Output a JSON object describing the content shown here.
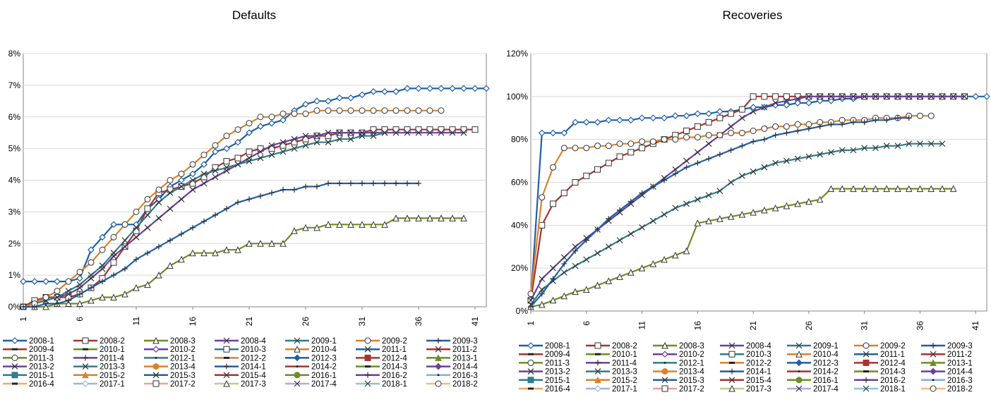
{
  "chart_data": [
    {
      "type": "line",
      "title": "Defaults",
      "xlabel": "",
      "ylabel": "",
      "x_ticks": [
        "1",
        "6",
        "11",
        "16",
        "21",
        "26",
        "31",
        "36",
        "41"
      ],
      "xlim": [
        1,
        42
      ],
      "ylim": [
        0,
        0.08
      ],
      "y_ticks": [
        "0%",
        "1%",
        "2%",
        "3%",
        "4%",
        "5%",
        "6%",
        "7%",
        "8%"
      ],
      "grid": true,
      "legend_position": "bottom",
      "series": [
        {
          "name": "2008-1",
          "color": "#1f5fa8",
          "marker": "diamond-open",
          "values": [
            0.008,
            0.008,
            0.008,
            0.008,
            0.008,
            0.009,
            0.018,
            0.022,
            0.026,
            0.026,
            0.026,
            0.031,
            0.034,
            0.038,
            0.04,
            0.042,
            0.045,
            0.049,
            0.05,
            0.052,
            0.055,
            0.057,
            0.058,
            0.059,
            0.062,
            0.064,
            0.065,
            0.065,
            0.066,
            0.066,
            0.067,
            0.068,
            0.068,
            0.068,
            0.069,
            0.069,
            0.069,
            0.069,
            0.069,
            0.069,
            0.069,
            0.069
          ]
        },
        {
          "name": "2008-2",
          "color": "#a83232",
          "marker": "square-open",
          "values": [
            0.0,
            0.002,
            0.003,
            0.003,
            0.003,
            0.004,
            0.006,
            0.009,
            0.014,
            0.019,
            0.024,
            0.031,
            0.036,
            0.037,
            0.038,
            0.039,
            0.041,
            0.044,
            0.046,
            0.047,
            0.049,
            0.05,
            0.05,
            0.051,
            0.052,
            0.053,
            0.054,
            0.054,
            0.055,
            0.055,
            0.055,
            0.056,
            0.056,
            0.056,
            0.056,
            0.056,
            0.056,
            0.056,
            0.056,
            0.056,
            0.056
          ]
        },
        {
          "name": "2008-3",
          "color": "#6b8e23",
          "marker": "triangle-open",
          "values": [
            0.0,
            0.0,
            0.0,
            0.001,
            0.001,
            0.001,
            0.002,
            0.003,
            0.003,
            0.004,
            0.006,
            0.007,
            0.01,
            0.013,
            0.015,
            0.017,
            0.017,
            0.017,
            0.018,
            0.018,
            0.02,
            0.02,
            0.02,
            0.02,
            0.024,
            0.025,
            0.025,
            0.026,
            0.026,
            0.026,
            0.026,
            0.026,
            0.026,
            0.028,
            0.028,
            0.028,
            0.028,
            0.028,
            0.028,
            0.028
          ]
        },
        {
          "name": "2008-4",
          "color": "#6c3fa0",
          "marker": "x",
          "values": [
            0.0,
            0.001,
            0.002,
            0.003,
            0.004,
            0.006,
            0.009,
            0.012,
            0.016,
            0.019,
            0.022,
            0.025,
            0.028,
            0.031,
            0.034,
            0.037,
            0.039,
            0.041,
            0.043,
            0.045,
            0.047,
            0.049,
            0.051,
            0.052,
            0.053,
            0.054,
            0.054,
            0.055,
            0.055,
            0.055,
            0.055,
            0.055,
            0.055,
            0.055,
            0.055,
            0.055,
            0.055,
            0.055,
            0.055,
            0.055
          ]
        },
        {
          "name": "2009-1",
          "color": "#2e7d8c",
          "marker": "x",
          "values": [
            0.0,
            0.001,
            0.002,
            0.003,
            0.005,
            0.007,
            0.01,
            0.013,
            0.017,
            0.021,
            0.025,
            0.029,
            0.033,
            0.036,
            0.038,
            0.04,
            0.042,
            0.043,
            0.044,
            0.045,
            0.046,
            0.047,
            0.048,
            0.049,
            0.05,
            0.051,
            0.052,
            0.052,
            0.053,
            0.053,
            0.054,
            0.054,
            0.055
          ]
        },
        {
          "name": "2009-2",
          "color": "#d9822b",
          "marker": "circle-open",
          "values": [
            0.0,
            0.001,
            0.003,
            0.005,
            0.008,
            0.011,
            0.014,
            0.018,
            0.022,
            0.026,
            0.03,
            0.034,
            0.037,
            0.04,
            0.042,
            0.045,
            0.048,
            0.051,
            0.054,
            0.056,
            0.058,
            0.06,
            0.06,
            0.061,
            0.061,
            0.061,
            0.062,
            0.062,
            0.062,
            0.062,
            0.062,
            0.062,
            0.062,
            0.062,
            0.062,
            0.062,
            0.062,
            0.062
          ]
        },
        {
          "name": "2009-3",
          "color": "#1f5fa8",
          "marker": "plus",
          "values": [
            0.0,
            0.0,
            0.001,
            0.001,
            0.002,
            0.004,
            0.006,
            0.008,
            0.01,
            0.012,
            0.015,
            0.017,
            0.019,
            0.021,
            0.023,
            0.025,
            0.027,
            0.029,
            0.031,
            0.033,
            0.034,
            0.035,
            0.036,
            0.037,
            0.037,
            0.038,
            0.038,
            0.039,
            0.039,
            0.039,
            0.039,
            0.039,
            0.039,
            0.039,
            0.039,
            0.039
          ]
        }
      ]
    },
    {
      "type": "line",
      "title": "Recoveries",
      "xlabel": "",
      "ylabel": "",
      "x_ticks": [
        "1",
        "6",
        "11",
        "16",
        "21",
        "26",
        "31",
        "36",
        "41"
      ],
      "xlim": [
        1,
        42
      ],
      "ylim": [
        0,
        1.2
      ],
      "y_ticks": [
        "0%",
        "20%",
        "40%",
        "60%",
        "80%",
        "100%",
        "120%"
      ],
      "grid": true,
      "legend_position": "bottom",
      "series": [
        {
          "name": "2008-1",
          "color": "#1f5fa8",
          "marker": "diamond-open",
          "values": [
            0.05,
            0.83,
            0.83,
            0.83,
            0.88,
            0.88,
            0.88,
            0.89,
            0.89,
            0.89,
            0.9,
            0.9,
            0.9,
            0.91,
            0.91,
            0.92,
            0.92,
            0.93,
            0.93,
            0.94,
            0.95,
            0.95,
            0.96,
            0.96,
            0.97,
            0.97,
            0.98,
            0.98,
            0.99,
            0.99,
            1.0,
            1.0,
            1.0,
            1.0,
            1.0,
            1.0,
            1.0,
            1.0,
            1.0,
            1.0,
            1.0,
            1.0
          ]
        },
        {
          "name": "2008-2",
          "color": "#a83232",
          "marker": "square-open",
          "values": [
            0.05,
            0.4,
            0.5,
            0.55,
            0.6,
            0.63,
            0.66,
            0.69,
            0.72,
            0.74,
            0.76,
            0.78,
            0.8,
            0.82,
            0.84,
            0.86,
            0.88,
            0.9,
            0.92,
            0.94,
            1.0,
            1.0,
            1.0,
            1.0,
            1.0,
            1.0,
            1.0,
            1.0,
            1.0,
            1.0,
            1.0,
            1.0,
            1.0,
            1.0,
            1.0,
            1.0,
            1.0,
            1.0,
            1.0,
            1.0
          ]
        },
        {
          "name": "2008-3",
          "color": "#6b8e23",
          "marker": "triangle-open",
          "values": [
            0.02,
            0.03,
            0.05,
            0.07,
            0.09,
            0.1,
            0.12,
            0.14,
            0.16,
            0.18,
            0.2,
            0.22,
            0.24,
            0.26,
            0.28,
            0.41,
            0.42,
            0.43,
            0.44,
            0.45,
            0.46,
            0.47,
            0.48,
            0.49,
            0.5,
            0.51,
            0.52,
            0.57,
            0.57,
            0.57,
            0.57,
            0.57,
            0.57,
            0.57,
            0.57,
            0.57,
            0.57,
            0.57,
            0.57
          ]
        },
        {
          "name": "2008-4",
          "color": "#6c3fa0",
          "marker": "x",
          "values": [
            0.05,
            0.15,
            0.2,
            0.25,
            0.3,
            0.34,
            0.38,
            0.42,
            0.46,
            0.5,
            0.54,
            0.58,
            0.62,
            0.66,
            0.7,
            0.74,
            0.78,
            0.82,
            0.86,
            0.9,
            0.93,
            0.95,
            0.97,
            0.98,
            0.99,
            1.0,
            1.0,
            1.0,
            1.0,
            1.0,
            1.0,
            1.0,
            1.0,
            1.0,
            1.0,
            1.0,
            1.0,
            1.0,
            1.0,
            1.0
          ]
        },
        {
          "name": "2009-1",
          "color": "#2e7d8c",
          "marker": "x",
          "values": [
            0.03,
            0.1,
            0.14,
            0.18,
            0.21,
            0.24,
            0.27,
            0.3,
            0.33,
            0.36,
            0.39,
            0.42,
            0.45,
            0.48,
            0.5,
            0.52,
            0.54,
            0.56,
            0.6,
            0.63,
            0.65,
            0.67,
            0.69,
            0.7,
            0.71,
            0.72,
            0.73,
            0.74,
            0.75,
            0.75,
            0.76,
            0.76,
            0.77,
            0.77,
            0.78,
            0.78,
            0.78,
            0.78
          ]
        },
        {
          "name": "2009-2",
          "color": "#d9822b",
          "marker": "circle-open",
          "values": [
            0.08,
            0.53,
            0.67,
            0.76,
            0.76,
            0.76,
            0.77,
            0.77,
            0.78,
            0.78,
            0.79,
            0.79,
            0.8,
            0.8,
            0.81,
            0.81,
            0.82,
            0.82,
            0.83,
            0.83,
            0.84,
            0.85,
            0.86,
            0.86,
            0.87,
            0.87,
            0.88,
            0.88,
            0.89,
            0.89,
            0.89,
            0.9,
            0.9,
            0.9,
            0.91,
            0.91,
            0.91
          ]
        },
        {
          "name": "2009-3",
          "color": "#1f5fa8",
          "marker": "plus",
          "values": [
            0.02,
            0.08,
            0.15,
            0.22,
            0.28,
            0.33,
            0.38,
            0.43,
            0.47,
            0.51,
            0.55,
            0.58,
            0.61,
            0.64,
            0.67,
            0.69,
            0.71,
            0.73,
            0.75,
            0.77,
            0.79,
            0.8,
            0.82,
            0.83,
            0.84,
            0.85,
            0.86,
            0.87,
            0.87,
            0.88,
            0.88,
            0.89,
            0.89,
            0.9,
            0.9
          ]
        }
      ]
    }
  ],
  "legend_items": [
    {
      "name": "2008-1",
      "color": "#1f5fa8",
      "marker": "diamond-open"
    },
    {
      "name": "2008-2",
      "color": "#a83232",
      "marker": "square-open"
    },
    {
      "name": "2008-3",
      "color": "#6b8e23",
      "marker": "triangle-open"
    },
    {
      "name": "2008-4",
      "color": "#6c3fa0",
      "marker": "x"
    },
    {
      "name": "2009-1",
      "color": "#2e7d8c",
      "marker": "x"
    },
    {
      "name": "2009-2",
      "color": "#d9822b",
      "marker": "circle-open"
    },
    {
      "name": "2009-3",
      "color": "#1f5fa8",
      "marker": "plus"
    },
    {
      "name": "2009-4",
      "color": "#a83232",
      "marker": "dash"
    },
    {
      "name": "2010-1",
      "color": "#6b8e23",
      "marker": "dash"
    },
    {
      "name": "2010-2",
      "color": "#6c3fa0",
      "marker": "diamond-open"
    },
    {
      "name": "2010-3",
      "color": "#2e7d8c",
      "marker": "square-open"
    },
    {
      "name": "2010-4",
      "color": "#d9822b",
      "marker": "triangle-open"
    },
    {
      "name": "2011-1",
      "color": "#1f5fa8",
      "marker": "x"
    },
    {
      "name": "2011-2",
      "color": "#a83232",
      "marker": "x"
    },
    {
      "name": "2011-3",
      "color": "#6b8e23",
      "marker": "circle-open"
    },
    {
      "name": "2011-4",
      "color": "#6c3fa0",
      "marker": "plus"
    },
    {
      "name": "2012-1",
      "color": "#2e7d8c",
      "marker": "dot"
    },
    {
      "name": "2012-2",
      "color": "#d9822b",
      "marker": "dash"
    },
    {
      "name": "2012-3",
      "color": "#1f5fa8",
      "marker": "diamond-filled"
    },
    {
      "name": "2012-4",
      "color": "#a83232",
      "marker": "square-filled"
    },
    {
      "name": "2013-1",
      "color": "#6b8e23",
      "marker": "triangle-filled"
    },
    {
      "name": "2013-2",
      "color": "#6c3fa0",
      "marker": "x"
    },
    {
      "name": "2013-3",
      "color": "#2e7d8c",
      "marker": "x"
    },
    {
      "name": "2013-4",
      "color": "#d9822b",
      "marker": "circle-filled"
    },
    {
      "name": "2014-1",
      "color": "#1f5fa8",
      "marker": "plus"
    },
    {
      "name": "2014-2",
      "color": "#a83232",
      "marker": "dot"
    },
    {
      "name": "2014-3",
      "color": "#6b8e23",
      "marker": "dash"
    },
    {
      "name": "2014-4",
      "color": "#6c3fa0",
      "marker": "diamond-filled"
    },
    {
      "name": "2015-1",
      "color": "#2e7d8c",
      "marker": "square-filled"
    },
    {
      "name": "2015-2",
      "color": "#d9822b",
      "marker": "triangle-filled"
    },
    {
      "name": "2015-3",
      "color": "#1f5fa8",
      "marker": "x"
    },
    {
      "name": "2015-4",
      "color": "#a83232",
      "marker": "x"
    },
    {
      "name": "2016-1",
      "color": "#6b8e23",
      "marker": "circle-filled"
    },
    {
      "name": "2016-2",
      "color": "#6c3fa0",
      "marker": "plus"
    },
    {
      "name": "2016-3",
      "color": "#7fb1d6",
      "marker": "dot"
    },
    {
      "name": "2016-4",
      "color": "#f2a86a",
      "marker": "dash"
    },
    {
      "name": "2017-1",
      "color": "#9ab6e0",
      "marker": "diamond-open"
    },
    {
      "name": "2017-2",
      "color": "#e8a0a0",
      "marker": "square-open"
    },
    {
      "name": "2017-3",
      "color": "#b8d08a",
      "marker": "triangle-open"
    },
    {
      "name": "2017-4",
      "color": "#b8a8d8",
      "marker": "x"
    },
    {
      "name": "2018-1",
      "color": "#8fc6d0",
      "marker": "x"
    },
    {
      "name": "2018-2",
      "color": "#f5b880",
      "marker": "circle-open"
    }
  ]
}
